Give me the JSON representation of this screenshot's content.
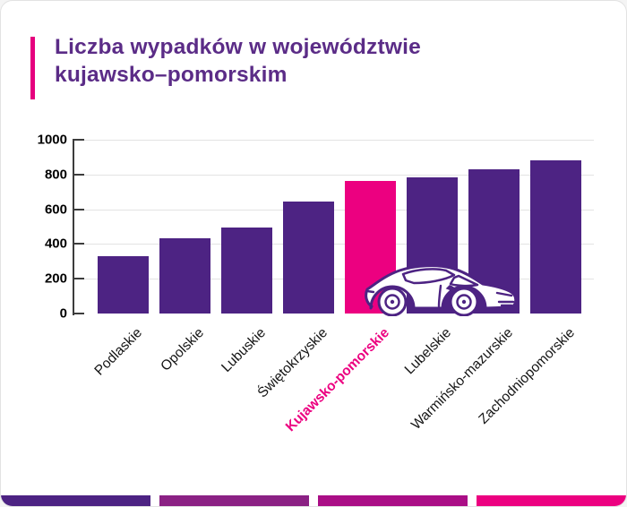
{
  "title": {
    "line1": "Liczba wypadków w województwie",
    "line2": "kujawsko–pomorskim",
    "text_color": "#5b2c87",
    "accent_color": "#e6007e"
  },
  "chart_data": {
    "type": "bar",
    "title": "Liczba wypadków w województwie kujawsko–pomorskim",
    "categories": [
      "Podlaskie",
      "Opolskie",
      "Lubuskie",
      "Świętokrzyskie",
      "Kujawsko-pomorskie",
      "Lubelskie",
      "Warmińsko-mazurskie",
      "Zachodniopomorskie"
    ],
    "values": [
      330,
      435,
      495,
      645,
      765,
      785,
      830,
      880
    ],
    "highlight_category": "Kujawsko-pomorskie",
    "highlight_index": 4,
    "bar_color": "#4d2383",
    "highlight_color": "#ec0080",
    "highlight_label_color": "#ec0080",
    "xlabel": "",
    "ylabel": "",
    "ylim": [
      0,
      1000
    ],
    "yticks": [
      0,
      200,
      400,
      600,
      800,
      1000
    ],
    "grid": true,
    "x_label_rotation_deg": -45,
    "legend": "none"
  },
  "decorations": {
    "car_icon": "car-icon",
    "car_outline_color": "#4d2383",
    "car_fill_color": "#ffffff"
  },
  "footer": {
    "stripe_colors": [
      "#4d2383",
      "#8b2184",
      "#aa0e86",
      "#ec0080"
    ]
  }
}
